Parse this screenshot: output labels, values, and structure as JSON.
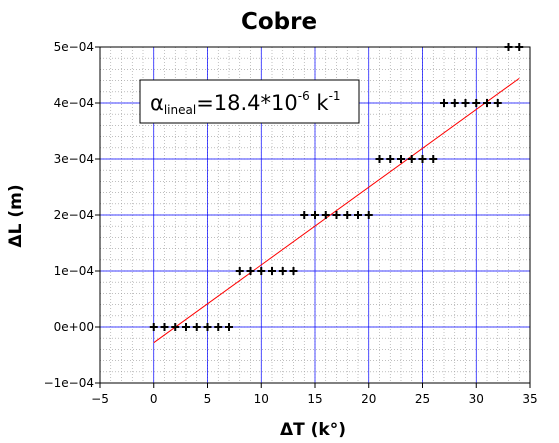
{
  "chart_data": {
    "type": "scatter",
    "title": "Cobre",
    "xlabel": "ΔT (k°)",
    "ylabel": "ΔL (m)",
    "xlim": [
      -5,
      35
    ],
    "ylim": [
      -0.0001,
      0.0005
    ],
    "x_ticks": [
      -5,
      0,
      5,
      10,
      15,
      20,
      25,
      30,
      35
    ],
    "x_tick_labels": [
      "−5",
      "0",
      "5",
      "10",
      "15",
      "20",
      "25",
      "30",
      "35"
    ],
    "y_ticks": [
      -0.0001,
      0,
      0.0001,
      0.0002,
      0.0003,
      0.0004,
      0.0005
    ],
    "y_tick_labels": [
      "−1e−04",
      "0e+00",
      "1e−04",
      "2e−04",
      "3e−04",
      "4e−04",
      "5e−04"
    ],
    "grid": true,
    "series": [
      {
        "marker": "+",
        "color": "#000000",
        "x": [
          0,
          1,
          2,
          3,
          4,
          5,
          6,
          7,
          8,
          9,
          10,
          11,
          12,
          13,
          14,
          15,
          16,
          17,
          18,
          19,
          20,
          21,
          22,
          23,
          24,
          25,
          26,
          27,
          28,
          29,
          30,
          31,
          32,
          33,
          34
        ],
        "y": [
          0.0,
          0.0,
          0.0,
          0.0,
          0.0,
          0.0,
          0.0,
          0.0,
          0.0001,
          0.0001,
          0.0001,
          0.0001,
          0.0001,
          0.0001,
          0.0002,
          0.0002,
          0.0002,
          0.0002,
          0.0002,
          0.0002,
          0.0002,
          0.0003,
          0.0003,
          0.0003,
          0.0003,
          0.0003,
          0.0003,
          0.0004,
          0.0004,
          0.0004,
          0.0004,
          0.0004,
          0.0004,
          0.0005,
          0.0005
        ]
      }
    ],
    "fit_line": {
      "color": "#ff0000",
      "x": [
        0,
        34
      ],
      "y": [
        -2.8e-05,
        0.000444
      ]
    },
    "annotation": {
      "symbol": "α",
      "subscript": "lineal",
      "main": "=18.4*10",
      "exponent": "-6",
      "unit": " k",
      "unit_exponent": "-1"
    },
    "colors": {
      "major_grid": "#0000ff",
      "minor_grid": "#999999",
      "points": "#000000",
      "fit": "#ff0000"
    }
  }
}
